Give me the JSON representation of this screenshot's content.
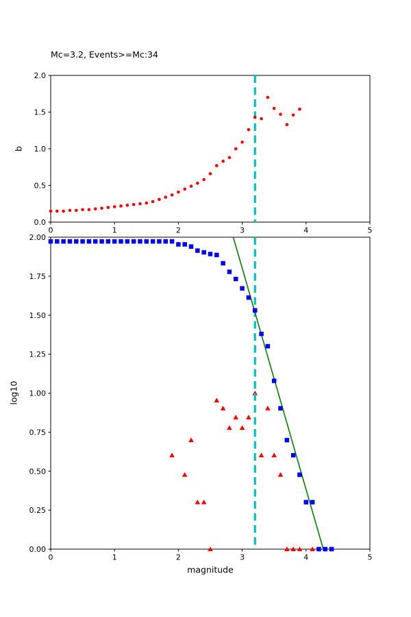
{
  "figure": {
    "background": "#ffffff",
    "colors": {
      "red": "#ff0000",
      "blue": "#0000ff",
      "green": "#008000",
      "cyan": "#00bfbf",
      "axis": "#000000"
    }
  },
  "chart_data": [
    {
      "id": "b-value-vs-cutoff-magnitude",
      "type": "scatter",
      "title": "Mc=3.2, Events>=Mc:34",
      "xlabel": "",
      "ylabel": "b",
      "xlim": [
        0,
        5
      ],
      "ylim": [
        0,
        2
      ],
      "grid": false,
      "legend": "none",
      "xticks": [
        "0",
        "1",
        "2",
        "3",
        "4",
        "5"
      ],
      "yticks": [
        "0.0",
        "0.5",
        "1.0",
        "1.5",
        "2.0"
      ],
      "vline": {
        "x": 3.2,
        "color": "#00bfbf",
        "style": "dashed"
      },
      "series": [
        {
          "name": "b-value-estimates",
          "marker": "circle",
          "color": "#ff0000",
          "x": [
            0.0,
            0.1,
            0.2,
            0.3,
            0.4,
            0.5,
            0.6,
            0.7,
            0.8,
            0.9,
            1.0,
            1.1,
            1.2,
            1.3,
            1.4,
            1.5,
            1.6,
            1.7,
            1.8,
            1.9,
            2.0,
            2.1,
            2.2,
            2.3,
            2.4,
            2.5,
            2.6,
            2.7,
            2.8,
            2.9,
            3.0,
            3.1,
            3.2,
            3.3,
            3.4,
            3.5,
            3.6,
            3.7,
            3.8,
            3.9
          ],
          "y": [
            0.15,
            0.15,
            0.15,
            0.16,
            0.16,
            0.17,
            0.17,
            0.18,
            0.19,
            0.2,
            0.21,
            0.22,
            0.23,
            0.24,
            0.25,
            0.26,
            0.28,
            0.31,
            0.34,
            0.37,
            0.41,
            0.45,
            0.49,
            0.53,
            0.58,
            0.66,
            0.77,
            0.83,
            0.88,
            1.0,
            1.09,
            1.26,
            1.43,
            1.41,
            1.7,
            1.55,
            1.47,
            1.33,
            1.46,
            1.54
          ]
        }
      ]
    },
    {
      "id": "frequency-magnitude-distribution",
      "type": "scatter",
      "title": "",
      "xlabel": "magnitude",
      "ylabel": "log10",
      "xlim": [
        0,
        5
      ],
      "ylim": [
        0,
        2
      ],
      "grid": false,
      "legend": "none",
      "xticks": [
        "0",
        "1",
        "2",
        "3",
        "4",
        "5"
      ],
      "yticks": [
        "0.00",
        "0.25",
        "0.50",
        "0.75",
        "1.00",
        "1.25",
        "1.50",
        "1.75",
        "2.00"
      ],
      "vline": {
        "x": 3.2,
        "color": "#00bfbf",
        "style": "dashed"
      },
      "series": [
        {
          "name": "noncumulative-bin-counts-log10",
          "marker": "triangle",
          "color": "#ff0000",
          "x": [
            1.9,
            2.1,
            2.2,
            2.3,
            2.4,
            2.5,
            2.6,
            2.7,
            2.8,
            2.9,
            3.0,
            3.1,
            3.2,
            3.3,
            3.4,
            3.5,
            3.6,
            3.7,
            3.8,
            3.9,
            4.1,
            4.4
          ],
          "y": [
            0.602,
            0.477,
            0.699,
            0.301,
            0.301,
            0.0,
            0.954,
            0.903,
            0.778,
            0.845,
            0.778,
            0.845,
            1.0,
            0.602,
            0.903,
            0.602,
            0.477,
            0.0,
            0.0,
            0.0,
            0.0,
            0.0
          ]
        },
        {
          "name": "gutenberg-richter-fit-line",
          "marker": "line",
          "color": "#008000",
          "x": [
            2.86,
            4.27
          ],
          "y": [
            2.0,
            0.0
          ]
        },
        {
          "name": "cumulative-counts-log10",
          "marker": "square",
          "color": "#0000ff",
          "x": [
            0.0,
            0.1,
            0.2,
            0.3,
            0.4,
            0.5,
            0.6,
            0.7,
            0.8,
            0.9,
            1.0,
            1.1,
            1.2,
            1.3,
            1.4,
            1.5,
            1.6,
            1.7,
            1.8,
            1.9,
            2.0,
            2.1,
            2.2,
            2.3,
            2.4,
            2.5,
            2.6,
            2.7,
            2.8,
            2.9,
            3.0,
            3.1,
            3.2,
            3.3,
            3.4,
            3.5,
            3.6,
            3.7,
            3.8,
            3.9,
            4.0,
            4.1,
            4.2,
            4.3,
            4.4
          ],
          "y": [
            1.973,
            1.973,
            1.973,
            1.973,
            1.973,
            1.973,
            1.973,
            1.973,
            1.973,
            1.973,
            1.973,
            1.973,
            1.973,
            1.973,
            1.973,
            1.973,
            1.973,
            1.973,
            1.973,
            1.973,
            1.954,
            1.954,
            1.94,
            1.914,
            1.903,
            1.892,
            1.886,
            1.833,
            1.778,
            1.732,
            1.672,
            1.613,
            1.531,
            1.38,
            1.301,
            1.079,
            0.903,
            0.699,
            0.602,
            0.477,
            0.301,
            0.301,
            0.0,
            0.0,
            0.0
          ]
        }
      ]
    }
  ]
}
